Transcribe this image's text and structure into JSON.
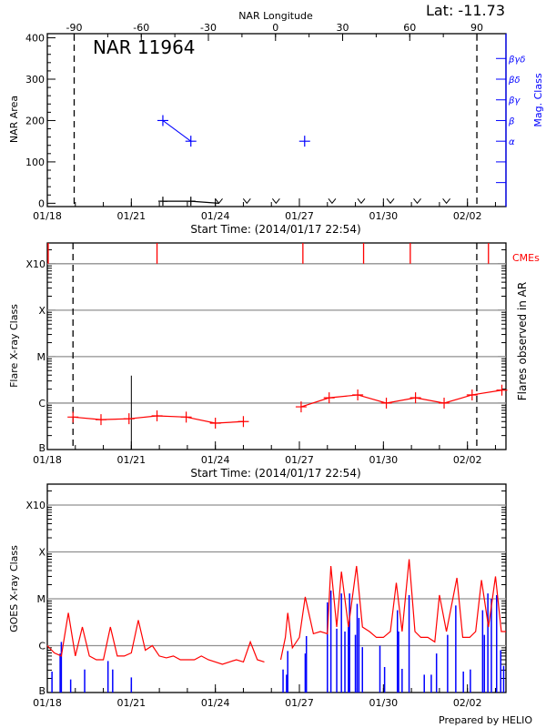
{
  "colors": {
    "axis": "#000000",
    "flare": "#ff0000",
    "mag_class": "#0000ff",
    "goes_long": "#ff0000",
    "goes_short": "#0000ff",
    "grid": "#909090"
  },
  "chart_data": [
    {
      "type": "line",
      "title": "NAR 11964",
      "annotation": "Lat: -11.73",
      "top_axis_label": "NAR Longitude",
      "top_ticks": [
        -90,
        -60,
        -30,
        0,
        30,
        60,
        90
      ],
      "lon_lim": [
        -102,
        103
      ],
      "limb_lines_longitude": [
        -90,
        90
      ],
      "xlabel": "Start Time: (2014/01/17 22:54)",
      "ylabel": "NAR Area",
      "y2label": "Mag. Class",
      "xlim": [
        "2014-01-18T00:00",
        "2014-02-03T09:00"
      ],
      "xticks": [
        "01/18",
        "01/21",
        "01/24",
        "01/27",
        "01/30",
        "02/02"
      ],
      "yticks": [
        0,
        100,
        200,
        300,
        400
      ],
      "ylim": [
        -8,
        410
      ],
      "mag_class_ticks": [
        {
          "value": 50,
          "label": ""
        },
        {
          "value": 100,
          "label": ""
        },
        {
          "value": 150,
          "label": "α"
        },
        {
          "value": 200,
          "label": "β"
        },
        {
          "value": 250,
          "label": "βγ"
        },
        {
          "value": 300,
          "label": "βδ"
        },
        {
          "value": 350,
          "label": "βγδ"
        }
      ],
      "area": [
        {
          "x": "2014-01-22T03:00",
          "y": 5
        },
        {
          "x": "2014-01-23T03:00",
          "y": 5
        },
        {
          "x": "2014-01-24T03:00",
          "y": 0
        }
      ],
      "area_zero_markers": [
        "2014-01-24T03:00",
        "2014-01-25T03:00",
        "2014-01-26T04:00",
        "2014-01-28T04:00",
        "2014-01-29T05:00",
        "2014-01-30T06:00",
        "2014-01-31T05:00",
        "2014-02-01T06:00"
      ],
      "mag_class_segments": [
        [
          {
            "x": "2014-01-22T03:00",
            "class": "β"
          },
          {
            "x": "2014-01-23T03:00",
            "class": "α"
          }
        ],
        [
          {
            "x": "2014-01-27T04:30",
            "class": "α"
          }
        ]
      ]
    },
    {
      "type": "line",
      "xlabel": "Start Time: (2014/01/17 22:54)",
      "ylabel": "Flare X-ray Class",
      "y2label": "Flares observed in AR",
      "cme_label": "CMEs",
      "xlim": [
        "2014-01-18T00:00",
        "2014-02-03T09:00"
      ],
      "xticks": [
        "01/18",
        "01/21",
        "01/24",
        "01/27",
        "01/30",
        "02/02"
      ],
      "yticks": [
        {
          "label": "B",
          "flux": 1e-07
        },
        {
          "label": "C",
          "flux": 1e-06
        },
        {
          "label": "M",
          "flux": 1e-05
        },
        {
          "label": "X",
          "flux": 0.0001
        },
        {
          "label": "X10",
          "flux": 0.001
        }
      ],
      "ylim": [
        1e-07,
        0.0028
      ],
      "yscale": "log",
      "grid": true,
      "limb_lines": [
        "2014-01-18T22:00",
        "2014-02-02T08:00"
      ],
      "cmes": [
        "2014-01-18T00:45",
        "2014-01-21T22:00",
        "2014-01-27T03:00",
        "2014-01-29T07:00",
        "2014-01-30T23:00",
        "2014-02-02T18:00"
      ],
      "ar_flares": [
        {
          "x": "2014-01-21T00:00",
          "class": "C3.9"
        }
      ],
      "segments": [
        [
          {
            "x": "2014-01-18T22:00",
            "class": "B5.0"
          },
          {
            "x": "2014-01-19T22:00",
            "class": "B4.4"
          },
          {
            "x": "2014-01-20T22:00",
            "class": "B4.6"
          },
          {
            "x": "2014-01-21T22:00",
            "class": "B5.3"
          },
          {
            "x": "2014-01-22T23:00",
            "class": "B5.0"
          },
          {
            "x": "2014-01-24T00:00",
            "class": "B3.7"
          },
          {
            "x": "2014-01-25T00:00",
            "class": "B4.0"
          }
        ],
        [
          {
            "x": "2014-01-27T01:30",
            "class": "B8.3"
          },
          {
            "x": "2014-01-28T01:30",
            "class": "C1.3"
          },
          {
            "x": "2014-01-29T02:00",
            "class": "C1.5"
          },
          {
            "x": "2014-01-30T02:30",
            "class": "C1.0"
          },
          {
            "x": "2014-01-31T03:30",
            "class": "C1.3"
          },
          {
            "x": "2014-02-01T04:00",
            "class": "C1.0"
          },
          {
            "x": "2014-02-02T04:00",
            "class": "C1.5"
          },
          {
            "x": "2014-02-03T05:30",
            "class": "C1.9"
          }
        ]
      ]
    },
    {
      "type": "line",
      "ylabel": "GOES X-ray Class",
      "credit": "Prepared by HELIO",
      "xlim": [
        "2014-01-18T00:00",
        "2014-02-03T09:00"
      ],
      "xticks": [
        "01/18",
        "01/21",
        "01/24",
        "01/27",
        "01/30",
        "02/02"
      ],
      "yticks": [
        {
          "label": "B",
          "flux": 1e-07
        },
        {
          "label": "C",
          "flux": 1e-06
        },
        {
          "label": "M",
          "flux": 1e-05
        },
        {
          "label": "X",
          "flux": 0.0001
        },
        {
          "label": "X10",
          "flux": 0.001
        }
      ],
      "ylim": [
        1e-07,
        0.0028
      ],
      "yscale": "log",
      "grid": true,
      "long_channel": [
        [
          "2014-01-18T00:00",
          "C1.0"
        ],
        [
          "2014-01-18T06:00",
          "B7.0"
        ],
        [
          "2014-01-18T12:00",
          "B6.0"
        ],
        [
          "2014-01-18T18:00",
          "C5.0"
        ],
        [
          "2014-01-19T00:00",
          "B6.0"
        ],
        [
          "2014-01-19T06:00",
          "C2.5"
        ],
        [
          "2014-01-19T12:00",
          "B6.0"
        ],
        [
          "2014-01-19T18:00",
          "B5.0"
        ],
        [
          "2014-01-20T00:00",
          "B5.0"
        ],
        [
          "2014-01-20T06:00",
          "C2.5"
        ],
        [
          "2014-01-20T12:00",
          "B6.0"
        ],
        [
          "2014-01-20T18:00",
          "B6.0"
        ],
        [
          "2014-01-21T00:00",
          "B7.0"
        ],
        [
          "2014-01-21T06:00",
          "C3.5"
        ],
        [
          "2014-01-21T12:00",
          "B8.0"
        ],
        [
          "2014-01-21T18:00",
          "C1.0"
        ],
        [
          "2014-01-22T00:00",
          "B6.0"
        ],
        [
          "2014-01-22T06:00",
          "B5.5"
        ],
        [
          "2014-01-22T12:00",
          "B6.0"
        ],
        [
          "2014-01-22T18:00",
          "B5.0"
        ],
        [
          "2014-01-23T00:00",
          "B5.0"
        ],
        [
          "2014-01-23T06:00",
          "B5.0"
        ],
        [
          "2014-01-23T12:00",
          "B6.0"
        ],
        [
          "2014-01-23T18:00",
          "B5.0"
        ],
        [
          "2014-01-24T00:00",
          "B4.5"
        ],
        [
          "2014-01-24T06:00",
          "B4.0"
        ],
        [
          "2014-01-24T12:00",
          "B4.5"
        ],
        [
          "2014-01-24T18:00",
          "B5.0"
        ],
        [
          "2014-01-25T00:00",
          "B4.5"
        ],
        [
          "2014-01-25T06:00",
          "C1.2"
        ],
        [
          "2014-01-25T12:00",
          "B5.0"
        ],
        [
          "2014-01-25T18:00",
          "B4.5"
        ],
        [
          "2014-01-26T06:00",
          null
        ],
        [
          "2014-01-26T08:00",
          "B5.0"
        ],
        [
          "2014-01-26T12:00",
          "C1.5"
        ],
        [
          "2014-01-26T14:00",
          "C5.0"
        ],
        [
          "2014-01-26T18:00",
          "B9.0"
        ],
        [
          "2014-01-27T00:00",
          "C1.5"
        ],
        [
          "2014-01-27T05:00",
          "M1.1"
        ],
        [
          "2014-01-27T12:00",
          "C1.8"
        ],
        [
          "2014-01-27T18:00",
          "C2.0"
        ],
        [
          "2014-01-28T00:00",
          "C1.8"
        ],
        [
          "2014-01-28T03:00",
          "M5.0"
        ],
        [
          "2014-01-28T08:00",
          "C2.5"
        ],
        [
          "2014-01-28T12:00",
          "M3.8"
        ],
        [
          "2014-01-28T18:00",
          "C2.5"
        ],
        [
          "2014-01-29T01:00",
          "M5.0"
        ],
        [
          "2014-01-29T06:00",
          "C2.5"
        ],
        [
          "2014-01-29T12:00",
          "C2.0"
        ],
        [
          "2014-01-29T18:00",
          "C1.5"
        ],
        [
          "2014-01-30T00:00",
          "C1.5"
        ],
        [
          "2014-01-30T06:00",
          "C2.0"
        ],
        [
          "2014-01-30T11:00",
          "M2.2"
        ],
        [
          "2014-01-30T16:00",
          "C2.0"
        ],
        [
          "2014-01-30T22:00",
          "M7.0"
        ],
        [
          "2014-01-31T03:00",
          "C2.0"
        ],
        [
          "2014-01-31T08:00",
          "C1.5"
        ],
        [
          "2014-01-31T14:00",
          "C1.5"
        ],
        [
          "2014-01-31T20:00",
          "C1.2"
        ],
        [
          "2014-02-01T00:00",
          "M1.2"
        ],
        [
          "2014-02-01T06:00",
          "C2.0"
        ],
        [
          "2014-02-01T15:00",
          "M2.8"
        ],
        [
          "2014-02-01T20:00",
          "C1.5"
        ],
        [
          "2014-02-02T02:00",
          "C1.5"
        ],
        [
          "2014-02-02T07:00",
          "C2.0"
        ],
        [
          "2014-02-02T12:00",
          "M2.5"
        ],
        [
          "2014-02-02T18:00",
          "C2.5"
        ],
        [
          "2014-02-03T00:00",
          "M3.0"
        ],
        [
          "2014-02-03T05:00",
          "C2.0"
        ],
        [
          "2014-02-03T09:00",
          "C2.0"
        ]
      ],
      "short_channel": [
        [
          "2014-01-18T04:00",
          "B2.8"
        ],
        [
          "2014-01-18T11:00",
          "B6.8"
        ],
        [
          "2014-01-18T12:00",
          "C1.2"
        ],
        [
          "2014-01-18T20:00",
          "B1.9"
        ],
        [
          "2014-01-19T08:00",
          "B3.1"
        ],
        [
          "2014-01-20T04:00",
          "B4.7"
        ],
        [
          "2014-01-20T08:00",
          "B3.1"
        ],
        [
          "2014-01-21T00:00",
          "B2.1"
        ],
        [
          "2014-01-26T10:00",
          "B3.1"
        ],
        [
          "2014-01-26T13:00",
          "B2.4"
        ],
        [
          "2014-01-26T14:00",
          "B7.7"
        ],
        [
          "2014-01-27T05:00",
          "B6.8"
        ],
        [
          "2014-01-27T06:00",
          "C1.6"
        ],
        [
          "2014-01-28T00:00",
          "C8.4"
        ],
        [
          "2014-01-28T03:00",
          "M1.5"
        ],
        [
          "2014-01-28T08:00",
          "C2.3"
        ],
        [
          "2014-01-28T12:00",
          "M1.3"
        ],
        [
          "2014-01-28T15:00",
          "C2.0"
        ],
        [
          "2014-01-28T18:00",
          "C2.5"
        ],
        [
          "2014-01-28T19:00",
          "M1.3"
        ],
        [
          "2014-01-29T00:00",
          "C1.7"
        ],
        [
          "2014-01-29T01:30",
          "C7.8"
        ],
        [
          "2014-01-29T03:00",
          "C3.9"
        ],
        [
          "2014-01-29T06:00",
          "B9.3"
        ],
        [
          "2014-01-29T21:00",
          "C1.0"
        ],
        [
          "2014-01-30T01:00",
          "B3.5"
        ],
        [
          "2014-01-30T12:00",
          "C5.7"
        ],
        [
          "2014-01-30T13:00",
          "C2.0"
        ],
        [
          "2014-01-30T16:00",
          "B3.2"
        ],
        [
          "2014-01-30T22:00",
          "M1.2"
        ],
        [
          "2014-01-31T11:00",
          "B2.4"
        ],
        [
          "2014-01-31T17:00",
          "B2.4"
        ],
        [
          "2014-01-31T21:30",
          "B6.8"
        ],
        [
          "2014-02-01T07:00",
          "C1.7"
        ],
        [
          "2014-02-01T14:00",
          "C7.2"
        ],
        [
          "2014-02-01T20:30",
          "B2.8"
        ],
        [
          "2014-02-02T02:30",
          "B3.1"
        ],
        [
          "2014-02-02T13:00",
          "C5.7"
        ],
        [
          "2014-02-02T14:30",
          "C1.7"
        ],
        [
          "2014-02-02T17:30",
          "M1.3"
        ],
        [
          "2014-02-02T20:30",
          "M1.0"
        ],
        [
          "2014-02-03T01:00",
          "M1.2"
        ],
        [
          "2014-02-03T04:30",
          "B8.0"
        ],
        [
          "2014-02-03T07:00",
          "B3.7"
        ]
      ]
    }
  ]
}
